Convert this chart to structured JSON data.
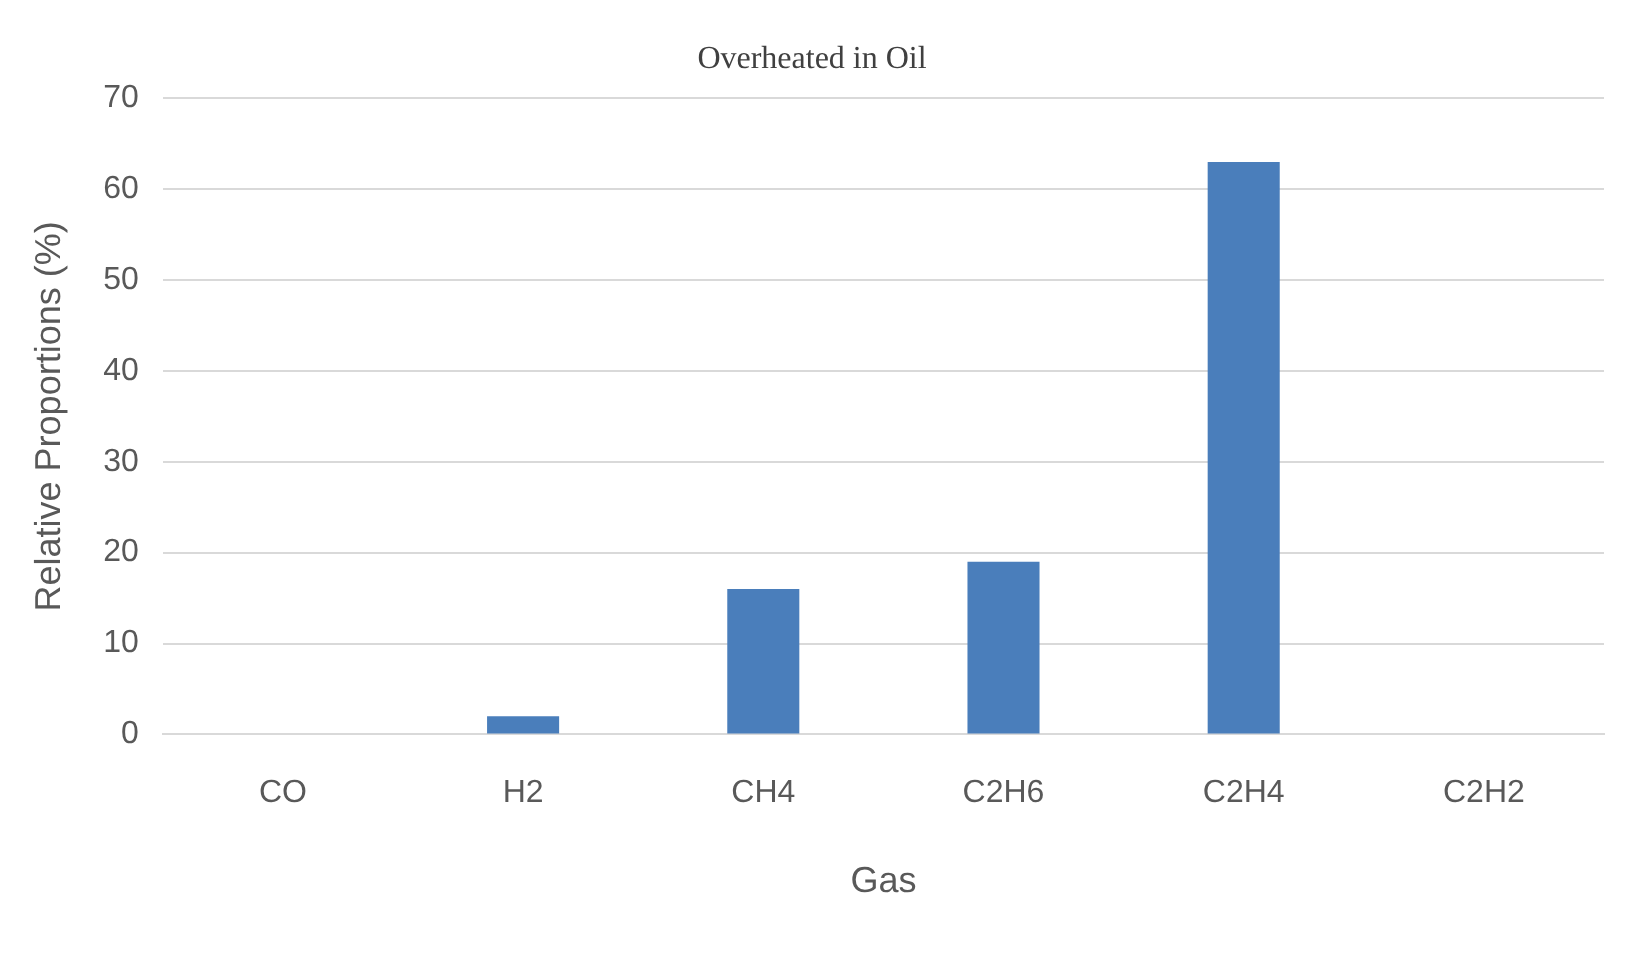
{
  "chart_data": {
    "type": "bar",
    "title": "Overheated in Oil",
    "xlabel": "Gas",
    "ylabel": "Relative Proportions (%)",
    "categories": [
      "CO",
      "H2",
      "CH4",
      "C2H6",
      "C2H4",
      "C2H2"
    ],
    "values": [
      0,
      2,
      16,
      19,
      63,
      0
    ],
    "color": "#4a7ebb",
    "ylim": [
      0,
      70
    ],
    "yticks": [
      0,
      10,
      20,
      30,
      40,
      50,
      60,
      70
    ],
    "grid": "y",
    "legend": false
  }
}
